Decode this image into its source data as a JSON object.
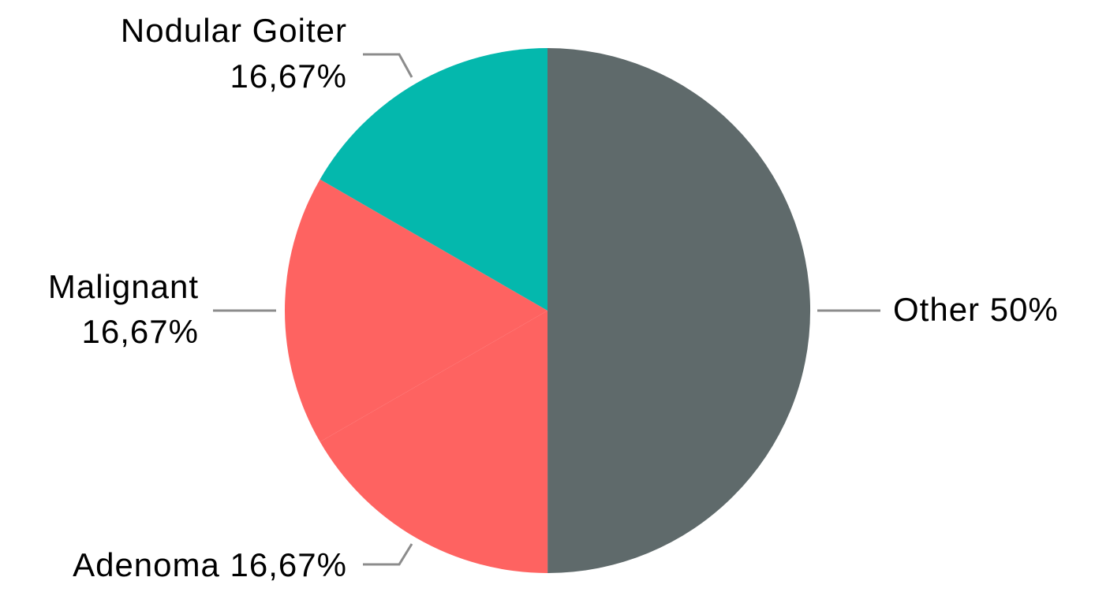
{
  "chart_data": {
    "type": "pie",
    "slices": [
      {
        "name": "Other",
        "value": 50,
        "color": "#5f6a6b",
        "label_lines": [
          "Other 50%"
        ]
      },
      {
        "name": "Adenoma",
        "value": 16.67,
        "color": "#fe6361",
        "label_lines": [
          "Adenoma 16,67%"
        ]
      },
      {
        "name": "Malignant",
        "value": 16.67,
        "color": "#fe6361",
        "label_lines": [
          "Malignant",
          "16,67%"
        ]
      },
      {
        "name": "Nodular Goiter",
        "value": 16.67,
        "color": "#04b8ad",
        "label_lines": [
          "Nodular Goiter",
          "16,67%"
        ]
      }
    ],
    "start_angle_deg": 0,
    "direction": "clockwise",
    "legend": "none"
  }
}
